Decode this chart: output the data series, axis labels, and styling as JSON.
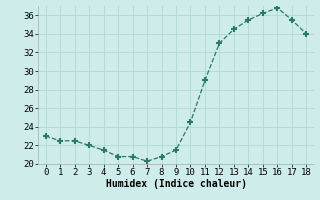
{
  "x": [
    0,
    1,
    2,
    3,
    4,
    5,
    6,
    7,
    8,
    9,
    10,
    11,
    12,
    13,
    14,
    15,
    16,
    17,
    18
  ],
  "y": [
    23.0,
    22.5,
    22.5,
    22.0,
    21.5,
    20.8,
    20.8,
    20.3,
    20.8,
    21.5,
    24.5,
    29.0,
    33.0,
    34.5,
    35.5,
    36.2,
    36.8,
    35.5,
    34.0
  ],
  "line_color": "#2a7a6a",
  "marker": "+",
  "marker_size": 5,
  "marker_linewidth": 1.5,
  "background_color": "#ceecea",
  "grid_color": "#b0d8d4",
  "xlabel": "Humidex (Indice chaleur)",
  "ylim": [
    20,
    37
  ],
  "xlim": [
    -0.5,
    18.5
  ],
  "yticks": [
    20,
    22,
    24,
    26,
    28,
    30,
    32,
    34,
    36
  ],
  "xticks": [
    0,
    1,
    2,
    3,
    4,
    5,
    6,
    7,
    8,
    9,
    10,
    11,
    12,
    13,
    14,
    15,
    16,
    17,
    18
  ],
  "label_fontsize": 7,
  "tick_fontsize": 6.5
}
